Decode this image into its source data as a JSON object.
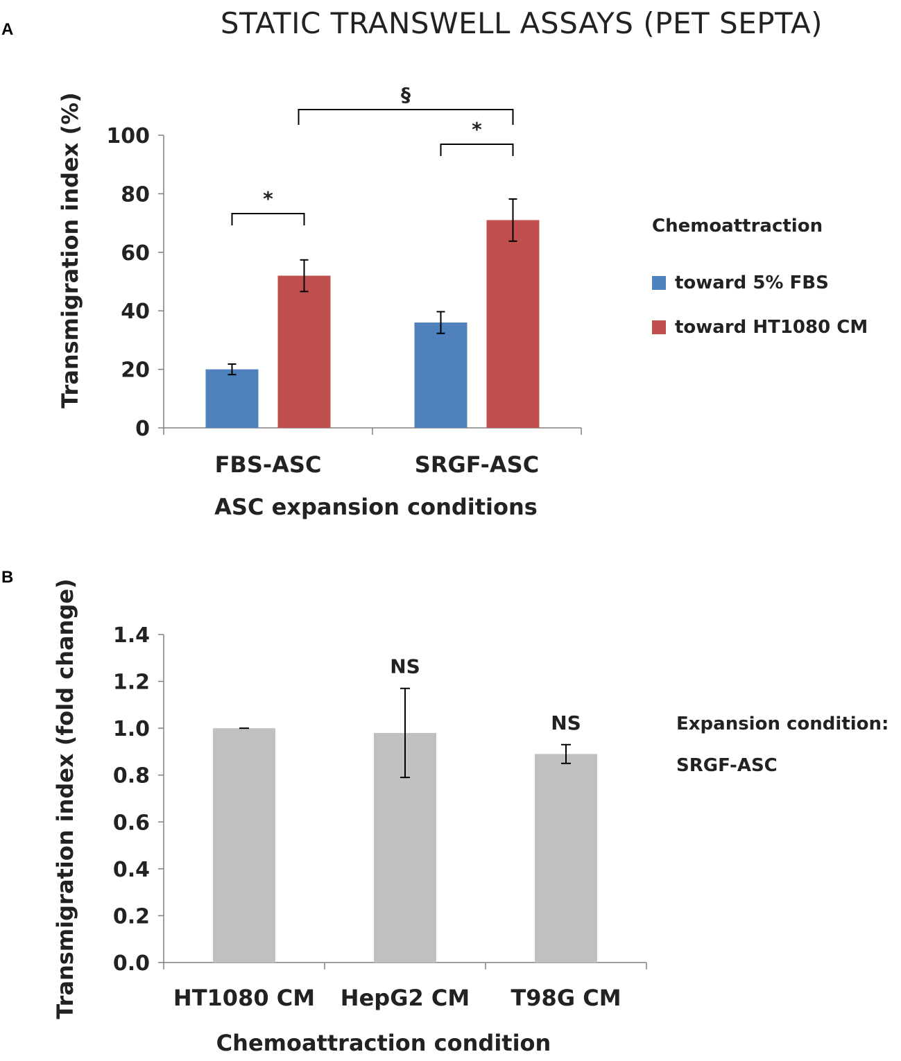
{
  "figure_title": "STATIC TRANSWELL ASSAYS (PET SEPTA)",
  "colors": {
    "fbs": "#4f81bd",
    "ht1080": "#c0504d",
    "grey": "#c0c0c0"
  },
  "chart_data": [
    {
      "panel": "A",
      "type": "bar",
      "title": "STATIC TRANSWELL ASSAYS (PET SEPTA)",
      "categories": [
        "FBS-ASC",
        "SRGF-ASC"
      ],
      "series": [
        {
          "name": "toward 5% FBS",
          "color": "#4f81bd",
          "values": [
            20,
            36
          ],
          "errors": [
            1.8,
            3.7
          ]
        },
        {
          "name": "toward HT1080 CM",
          "color": "#c0504d",
          "values": [
            52,
            71
          ],
          "errors": [
            5.4,
            7.2
          ]
        }
      ],
      "xlabel": "ASC expansion conditions",
      "ylabel": "Transmigration index (%)",
      "ylim": [
        0,
        100
      ],
      "yticks": [
        "0",
        "20",
        "40",
        "60",
        "80",
        "100"
      ],
      "legend_title": "Chemoattraction",
      "annotations": [
        {
          "label": "*",
          "between": "FBS-ASC: toward 5% FBS vs toward HT1080 CM"
        },
        {
          "label": "*",
          "between": "SRGF-ASC: toward 5% FBS vs toward HT1080 CM"
        },
        {
          "label": "§",
          "between": "toward HT1080 CM: FBS-ASC vs SRGF-ASC"
        }
      ]
    },
    {
      "panel": "B",
      "type": "bar",
      "categories": [
        "HT1080 CM",
        "HepG2 CM",
        "T98G CM"
      ],
      "series": [
        {
          "name": "SRGF-ASC",
          "color": "#c0c0c0",
          "values": [
            1.0,
            0.98,
            0.89
          ],
          "errors": [
            0.0,
            0.19,
            0.04
          ]
        }
      ],
      "xlabel": "Chemoattraction condition",
      "ylabel": "Transmigration index (fold change)",
      "ylim": [
        0,
        1.4
      ],
      "yticks": [
        "0.0",
        "0.2",
        "0.4",
        "0.6",
        "0.8",
        "1.0",
        "1.2",
        "1.4"
      ],
      "bar_labels": [
        "",
        "NS",
        "NS"
      ],
      "note_title": "Expansion condition:",
      "note_value": "SRGF-ASC"
    }
  ]
}
